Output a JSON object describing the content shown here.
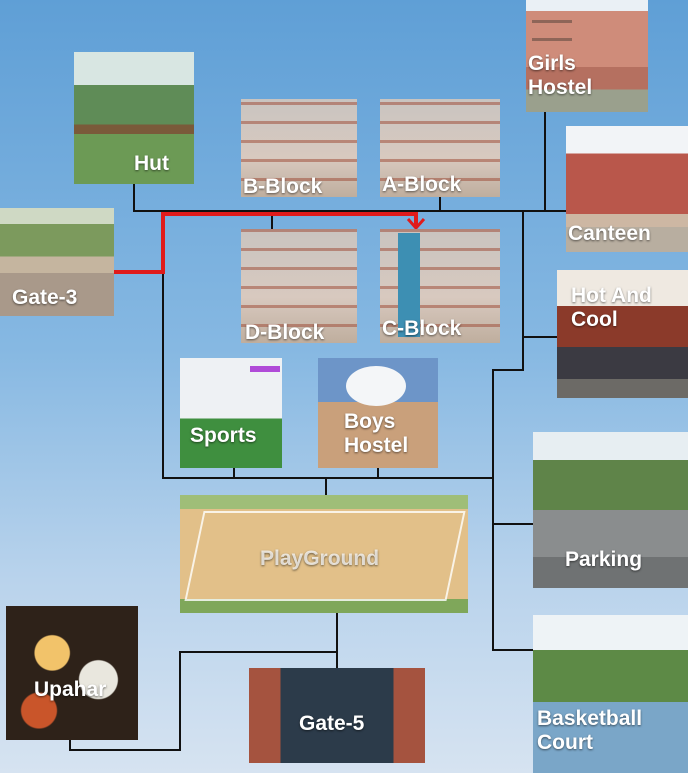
{
  "map": {
    "locations": [
      {
        "id": "girls-hostel",
        "label": "Girls\nHostel"
      },
      {
        "id": "hut",
        "label": "Hut"
      },
      {
        "id": "b-block",
        "label": "B-Block"
      },
      {
        "id": "a-block",
        "label": "A-Block"
      },
      {
        "id": "canteen",
        "label": "Canteen"
      },
      {
        "id": "gate-3",
        "label": "Gate-3"
      },
      {
        "id": "d-block",
        "label": "D-Block"
      },
      {
        "id": "c-block",
        "label": "C-Block"
      },
      {
        "id": "hot-and-cool",
        "label": "Hot And\nCool"
      },
      {
        "id": "sports",
        "label": "Sports"
      },
      {
        "id": "boys-hostel",
        "label": "Boys\nHostel"
      },
      {
        "id": "parking",
        "label": "Parking"
      },
      {
        "id": "playground",
        "label": "PlayGround"
      },
      {
        "id": "upahar",
        "label": "Upahar"
      },
      {
        "id": "gate-5",
        "label": "Gate-5"
      },
      {
        "id": "basketball-court",
        "label": "Basketball\nCourt"
      }
    ],
    "route": {
      "from": "Gate-3",
      "to": "C-Block",
      "color": "#e01b1b"
    },
    "path_color": "#111111"
  }
}
